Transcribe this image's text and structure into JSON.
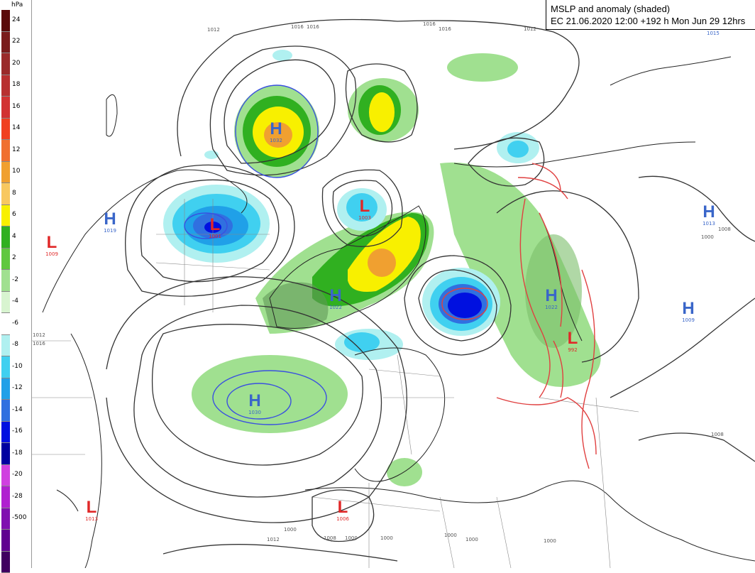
{
  "title": {
    "line1": "MSLP and anomaly (shaded)",
    "line2": "EC 21.06.2020 12:00 +192 h Mon Jun 29 12hrs"
  },
  "colorbar": {
    "unit": "hPa",
    "ticks": [
      "24",
      "22",
      "20",
      "18",
      "16",
      "14",
      "12",
      "10",
      "8",
      "6",
      "4",
      "2",
      "-2",
      "-4",
      "-6",
      "-8",
      "-10",
      "-12",
      "-14",
      "-16",
      "-18",
      "-20",
      "-28",
      "-500"
    ],
    "colors": [
      "#5a0a0a",
      "#7a1c1c",
      "#9a2a2a",
      "#b83030",
      "#d23232",
      "#f04020",
      "#f07030",
      "#f0a030",
      "#f8c860",
      "#f8f000",
      "#30b020",
      "#60c840",
      "#a0e090",
      "#d8f4d0",
      "#ffffff",
      "#b0f0f0",
      "#40d0f0",
      "#20a0e8",
      "#3070e0",
      "#0010e0",
      "#0000a0",
      "#d040e0",
      "#b020d0",
      "#8010b0",
      "#600090",
      "#400060"
    ]
  },
  "pressure_centers": [
    {
      "type": "H",
      "value": "1032"
    },
    {
      "type": "L",
      "value": "1003"
    },
    {
      "type": "L",
      "value": "1001"
    },
    {
      "type": "H",
      "value": "1019"
    },
    {
      "type": "L",
      "value": "1009"
    },
    {
      "type": "H",
      "value": "1022"
    },
    {
      "type": "H",
      "value": "1030"
    },
    {
      "type": "H",
      "value": "1022"
    },
    {
      "type": "L",
      "value": "992"
    },
    {
      "type": "H",
      "value": "1013"
    },
    {
      "type": "H",
      "value": "1009"
    },
    {
      "type": "L",
      "value": "1006"
    },
    {
      "type": "L",
      "value": "1013"
    }
  ],
  "isobar_labels": [
    "1012",
    "1016",
    "1016",
    "1016",
    "1016",
    "1012",
    "1015",
    "1008",
    "1000",
    "1008",
    "1012",
    "1016",
    "1012",
    "1008",
    "1000",
    "1000",
    "1000",
    "1000",
    "1000",
    "1000"
  ]
}
